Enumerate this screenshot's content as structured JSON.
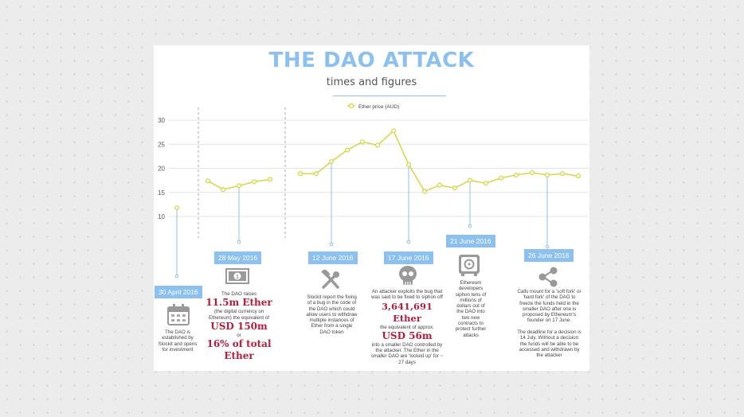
{
  "header": {
    "title": "THE DAO ATTACK",
    "subtitle": "times and figures"
  },
  "chart_data": {
    "type": "line",
    "legend": "Ether price (AUD)",
    "legend_position": "top",
    "y_ticks": [
      10,
      15,
      20,
      25,
      30
    ],
    "ylim": [
      10,
      30
    ],
    "grid": true,
    "series": [
      {
        "name": "Ether price (AUD)",
        "color": "#d4d43a",
        "segments": [
          [
            11.8
          ],
          [
            17.4,
            15.6,
            16.4,
            17.2,
            17.7
          ],
          [
            18.9,
            18.9,
            21.4,
            23.8,
            25.5,
            24.8,
            27.8,
            20.8,
            15.2,
            16.5,
            15.9,
            17.5,
            16.9,
            18.0,
            18.6,
            19.1,
            18.6,
            18.9,
            18.4
          ]
        ]
      }
    ]
  },
  "events": [
    {
      "date": "30 April 2016",
      "icon": "calendar-icon",
      "text": "The DAO is established by Slockit and opens for investment"
    },
    {
      "date": "28 May 2016",
      "icon": "banknote-icon",
      "text1": "The DAO raises",
      "big1": "11.5m Ether",
      "text2": "(the digital currency on Ethereum) the equivalent of",
      "big2": "USD 150m",
      "text3": "or",
      "big3": "16% of total Ether"
    },
    {
      "date": "12 June 2016",
      "icon": "tools-icon",
      "text": "Slockit report the fixing of a bug in the code of the DAO which could allow users to withdraw multiple instances of Ether from a single DAO token"
    },
    {
      "date": "17 June 2016",
      "icon": "skull-icon",
      "text1": "An attacker exploits the bug that was said to be fixed to siphon off",
      "big1": "3,641,691 Ether",
      "text2": "the equivalent of approx.",
      "big2": "USD 56m",
      "text3": "into a smaller DAO controlled by the attacker. The Ether in the smaller DAO are 'locked up' for ~ 27 days"
    },
    {
      "date": "21 June 2016",
      "icon": "safe-icon",
      "text": "Ethereum developers siphon tens of millions of dollars out of the DAO into two new contracts to protect further attacks"
    },
    {
      "date": "26 June 2016",
      "icon": "share-icon",
      "text1": "Calls mount for a 'soft fork' or 'hard fork' of the DAO to freeze the funds held in the smaller DAO after one is proposed by Ethereum's founder on 17 June.",
      "text2": "The deadline for a decision is 14 July.  Without a decision the funds will be able to be  accessed and withdrawn by the attacker"
    }
  ]
}
